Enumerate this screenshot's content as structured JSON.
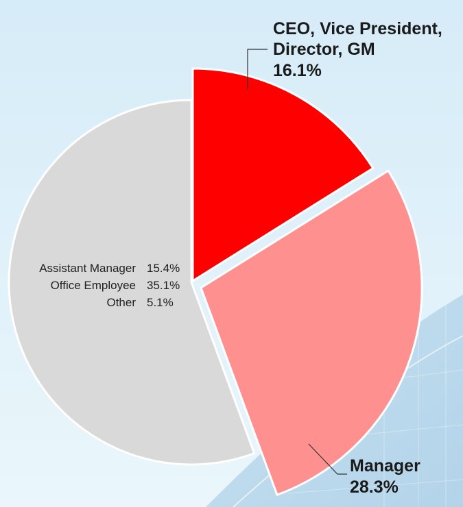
{
  "chart_data": {
    "type": "pie",
    "title": "",
    "legend": "none",
    "colors": {
      "ceo": "#ff0000",
      "manager": "#ff9090",
      "others": "#d9d9d9",
      "background": "#dceef7"
    },
    "slices": [
      {
        "label_lines": [
          "CEO, Vice President,",
          "Director, GM"
        ],
        "value_text": "16.1%",
        "value": 16.1,
        "exploded": true,
        "color": "#ff0000"
      },
      {
        "label_lines": [
          "Manager"
        ],
        "value_text": "28.3%",
        "value": 28.3,
        "exploded": true,
        "color": "#ff9090"
      },
      {
        "label_lines": [],
        "value_text": "",
        "value": 55.6,
        "exploded": false,
        "color": "#d9d9d9"
      }
    ],
    "combined_slice_items": [
      {
        "label": "Assistant Manager",
        "value_text": "15.4%",
        "value": 15.4
      },
      {
        "label": "Office Employee",
        "value_text": "35.1%",
        "value": 35.1
      },
      {
        "label": "Other",
        "value_text": "5.1%",
        "value": 5.1
      }
    ]
  }
}
